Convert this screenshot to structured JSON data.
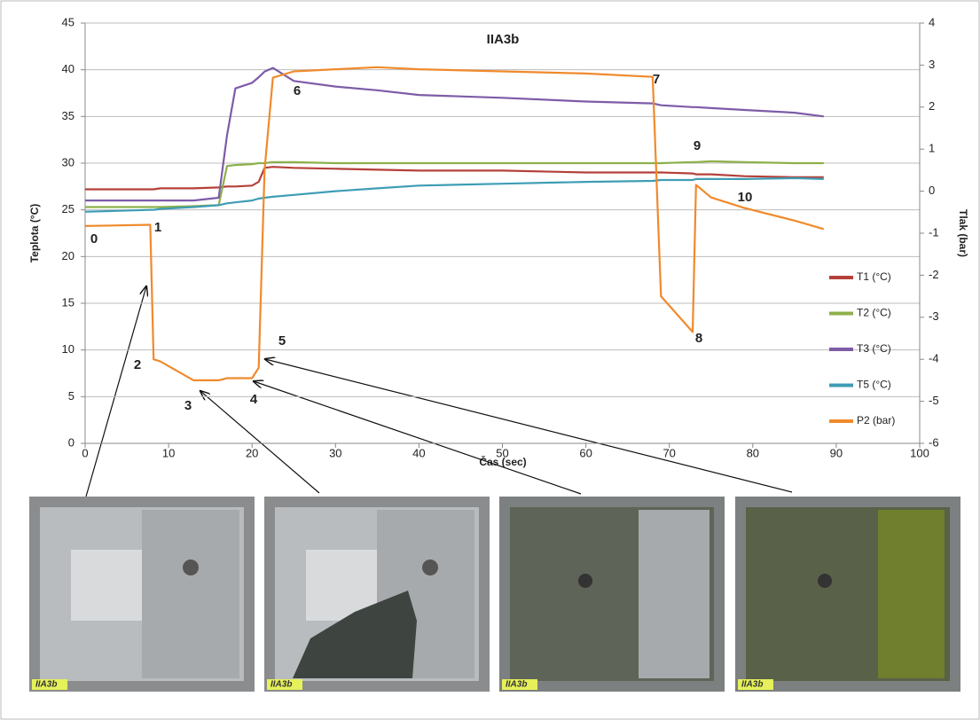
{
  "chart_data": {
    "type": "line",
    "title": "IIA3b",
    "xlabel": "Čas (sec)",
    "ylabel": "Teplota (°C)",
    "y2label": "Tlak (bar)",
    "xlim": [
      0,
      100
    ],
    "xticks": [
      0,
      10,
      20,
      30,
      40,
      50,
      60,
      70,
      80,
      90,
      100
    ],
    "ylim": [
      0,
      45
    ],
    "yticks": [
      0,
      5,
      10,
      15,
      20,
      25,
      30,
      35,
      40,
      45
    ],
    "y2lim": [
      -6,
      4
    ],
    "y2ticks": [
      -6,
      -5,
      -4,
      -3,
      -2,
      -1,
      0,
      1,
      2,
      3,
      4
    ],
    "grid": true,
    "legend": "right",
    "x": [
      0,
      7.8,
      8.2,
      9,
      13,
      16,
      17,
      18,
      20,
      20.8,
      21.5,
      22.5,
      25,
      30,
      35,
      40,
      50,
      60,
      68,
      69,
      72.8,
      73.2,
      75,
      79,
      85,
      88.5
    ],
    "series": [
      {
        "name": "T1 (°C)",
        "color": "#b5403a",
        "values": [
          27.2,
          27.2,
          27.2,
          27.3,
          27.3,
          27.4,
          27.5,
          27.5,
          27.6,
          28,
          29.5,
          29.6,
          29.5,
          29.4,
          29.3,
          29.2,
          29.2,
          29,
          29,
          29,
          28.9,
          28.8,
          28.8,
          28.6,
          28.5,
          28.5
        ]
      },
      {
        "name": "T2 (°C)",
        "color": "#8db04a",
        "values": [
          25.3,
          25.3,
          25.3,
          25.3,
          25.4,
          25.5,
          29.7,
          29.8,
          29.9,
          30,
          30,
          30.1,
          30.1,
          30,
          30,
          30,
          30,
          30,
          30,
          30,
          30.1,
          30.1,
          30.2,
          30.1,
          30,
          30
        ]
      },
      {
        "name": "T3 (°C)",
        "color": "#7d5ca8",
        "values": [
          26,
          26,
          26,
          26,
          26,
          26.3,
          33,
          38,
          38.6,
          39.2,
          39.8,
          40.2,
          38.8,
          38.2,
          37.8,
          37.3,
          37,
          36.6,
          36.4,
          36.2,
          36,
          36,
          35.9,
          35.7,
          35.4,
          35
        ]
      },
      {
        "name": "T5 (°C)",
        "color": "#3e9db5",
        "values": [
          24.8,
          25,
          25,
          25.1,
          25.3,
          25.5,
          25.7,
          25.8,
          26,
          26.2,
          26.3,
          26.4,
          26.6,
          27,
          27.3,
          27.6,
          27.8,
          28,
          28.1,
          28.2,
          28.2,
          28.3,
          28.3,
          28.3,
          28.4,
          28.3
        ]
      },
      {
        "name": "P2 (bar)",
        "color": "#f08a2c",
        "axis": "y2",
        "values": [
          -0.83,
          -0.8,
          -4.0,
          -4.05,
          -4.5,
          -4.5,
          -4.45,
          -4.45,
          -4.45,
          -4.2,
          0.5,
          2.7,
          2.85,
          2.9,
          2.95,
          2.9,
          2.85,
          2.8,
          2.72,
          -2.5,
          -3.35,
          0.15,
          -0.15,
          -0.4,
          -0.7,
          -0.9
        ]
      }
    ],
    "annotations": [
      "0",
      "1",
      "2",
      "3",
      "4",
      "5",
      "6",
      "7",
      "8",
      "9",
      "10"
    ],
    "photo_labels": [
      "IIA3b",
      "IIA3b",
      "IIA3b",
      "IIA3b"
    ]
  }
}
